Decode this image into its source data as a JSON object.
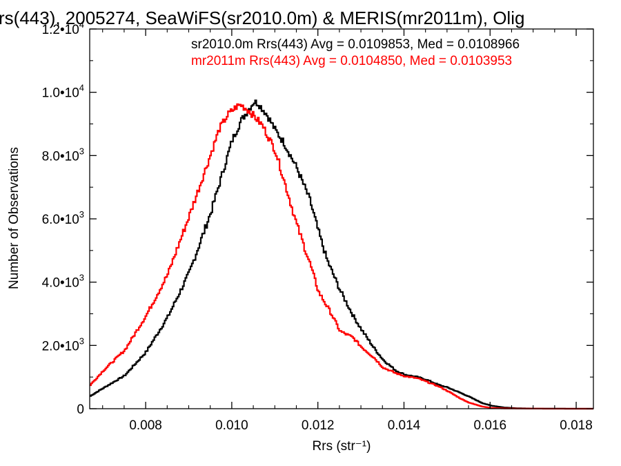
{
  "chart_data": {
    "type": "line",
    "title": "rs(443), 2005274, SeaWiFS(sr2010.0m) & MERIS(mr2011m), Olig",
    "xlabel": "Rrs (str⁻¹)",
    "ylabel": "Number of Observations",
    "xlim": [
      0.0067,
      0.0184
    ],
    "ylim": [
      0,
      12000
    ],
    "x_ticks": [
      {
        "value": 0.008,
        "label": "0.008"
      },
      {
        "value": 0.01,
        "label": "0.010"
      },
      {
        "value": 0.012,
        "label": "0.012"
      },
      {
        "value": 0.014,
        "label": "0.014"
      },
      {
        "value": 0.016,
        "label": "0.016"
      },
      {
        "value": 0.018,
        "label": "0.018"
      }
    ],
    "y_ticks": [
      {
        "value": 0,
        "mant": "0",
        "exp": ""
      },
      {
        "value": 2000,
        "mant": "2.0•10",
        "exp": "3"
      },
      {
        "value": 4000,
        "mant": "4.0•10",
        "exp": "3"
      },
      {
        "value": 6000,
        "mant": "6.0•10",
        "exp": "3"
      },
      {
        "value": 8000,
        "mant": "8.0•10",
        "exp": "3"
      },
      {
        "value": 10000,
        "mant": "1.0•10",
        "exp": "4"
      },
      {
        "value": 12000,
        "mant": "1.2•10",
        "exp": "4"
      }
    ],
    "grid": false,
    "legend_position": "top-right",
    "series": [
      {
        "name": "sr2010.0m",
        "legend_text": "sr2010.0m Rrs(443) Avg = 0.0109853, Med = 0.0108966",
        "color": "#000000",
        "x": [
          0.0067,
          0.007,
          0.0075,
          0.008,
          0.0085,
          0.009,
          0.0095,
          0.01,
          0.0102,
          0.0104,
          0.0105,
          0.0106,
          0.0108,
          0.011,
          0.0112,
          0.0115,
          0.0118,
          0.012,
          0.0122,
          0.0125,
          0.0128,
          0.013,
          0.0133,
          0.0135,
          0.0138,
          0.014,
          0.0143,
          0.0145,
          0.0148,
          0.015,
          0.0153,
          0.0155,
          0.0158,
          0.016,
          0.0163,
          0.0166,
          0.017,
          0.0175,
          0.018,
          0.0184
        ],
        "y": [
          400,
          650,
          1050,
          1800,
          2900,
          4300,
          6200,
          8500,
          9100,
          9500,
          9700,
          9650,
          9300,
          8800,
          8400,
          7600,
          6600,
          5600,
          4700,
          3750,
          2950,
          2500,
          1900,
          1550,
          1200,
          1080,
          1000,
          920,
          750,
          670,
          500,
          380,
          180,
          100,
          40,
          15,
          5,
          2,
          0,
          0
        ]
      },
      {
        "name": "mr2011m",
        "legend_text": "mr2011m Rrs(443) Avg = 0.0104850, Med = 0.0103953",
        "color": "#ff0000",
        "x": [
          0.0067,
          0.007,
          0.0075,
          0.008,
          0.0085,
          0.009,
          0.0095,
          0.0097,
          0.0099,
          0.0101,
          0.0102,
          0.0103,
          0.0104,
          0.0105,
          0.0107,
          0.011,
          0.0113,
          0.0115,
          0.0118,
          0.012,
          0.0123,
          0.0125,
          0.0128,
          0.013,
          0.0133,
          0.0135,
          0.0138,
          0.014,
          0.0143,
          0.0145,
          0.0148,
          0.015,
          0.0153,
          0.0155,
          0.0158,
          0.016,
          0.0163,
          0.0166,
          0.017,
          0.0175,
          0.018,
          0.0184
        ],
        "y": [
          750,
          1200,
          1850,
          2950,
          4250,
          6100,
          8050,
          8850,
          9300,
          9550,
          9600,
          9500,
          9400,
          9250,
          8950,
          8150,
          6750,
          5800,
          4600,
          3700,
          3000,
          2450,
          2250,
          1950,
          1600,
          1300,
          1120,
          1030,
          960,
          860,
          700,
          560,
          320,
          190,
          70,
          25,
          10,
          5,
          2,
          0,
          0,
          0
        ]
      }
    ]
  }
}
